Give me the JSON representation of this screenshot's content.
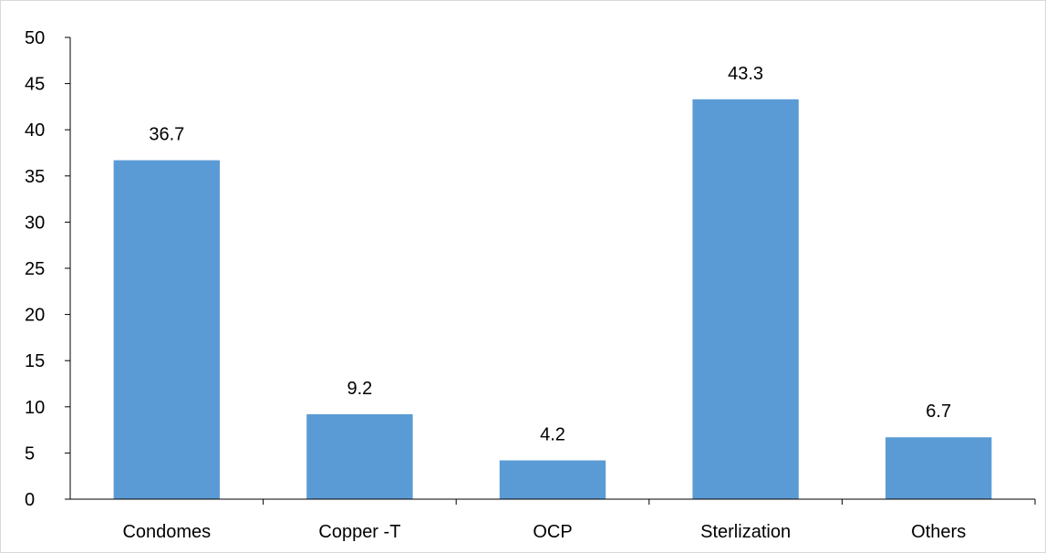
{
  "chart_data": {
    "type": "bar",
    "categories": [
      "Condomes",
      "Copper -T",
      "OCP",
      "Sterlization",
      "Others"
    ],
    "values": [
      36.7,
      9.2,
      4.2,
      43.3,
      6.7
    ],
    "data_labels": [
      "36.7",
      "9.2",
      "4.2",
      "43.3",
      "6.7"
    ],
    "ylim": [
      0,
      50
    ],
    "y_ticks": [
      0,
      5,
      10,
      15,
      20,
      25,
      30,
      35,
      40,
      45,
      50
    ],
    "grid": false,
    "legend": "none",
    "bar_color": "#5b9bd5",
    "axis_color": "#000000"
  }
}
